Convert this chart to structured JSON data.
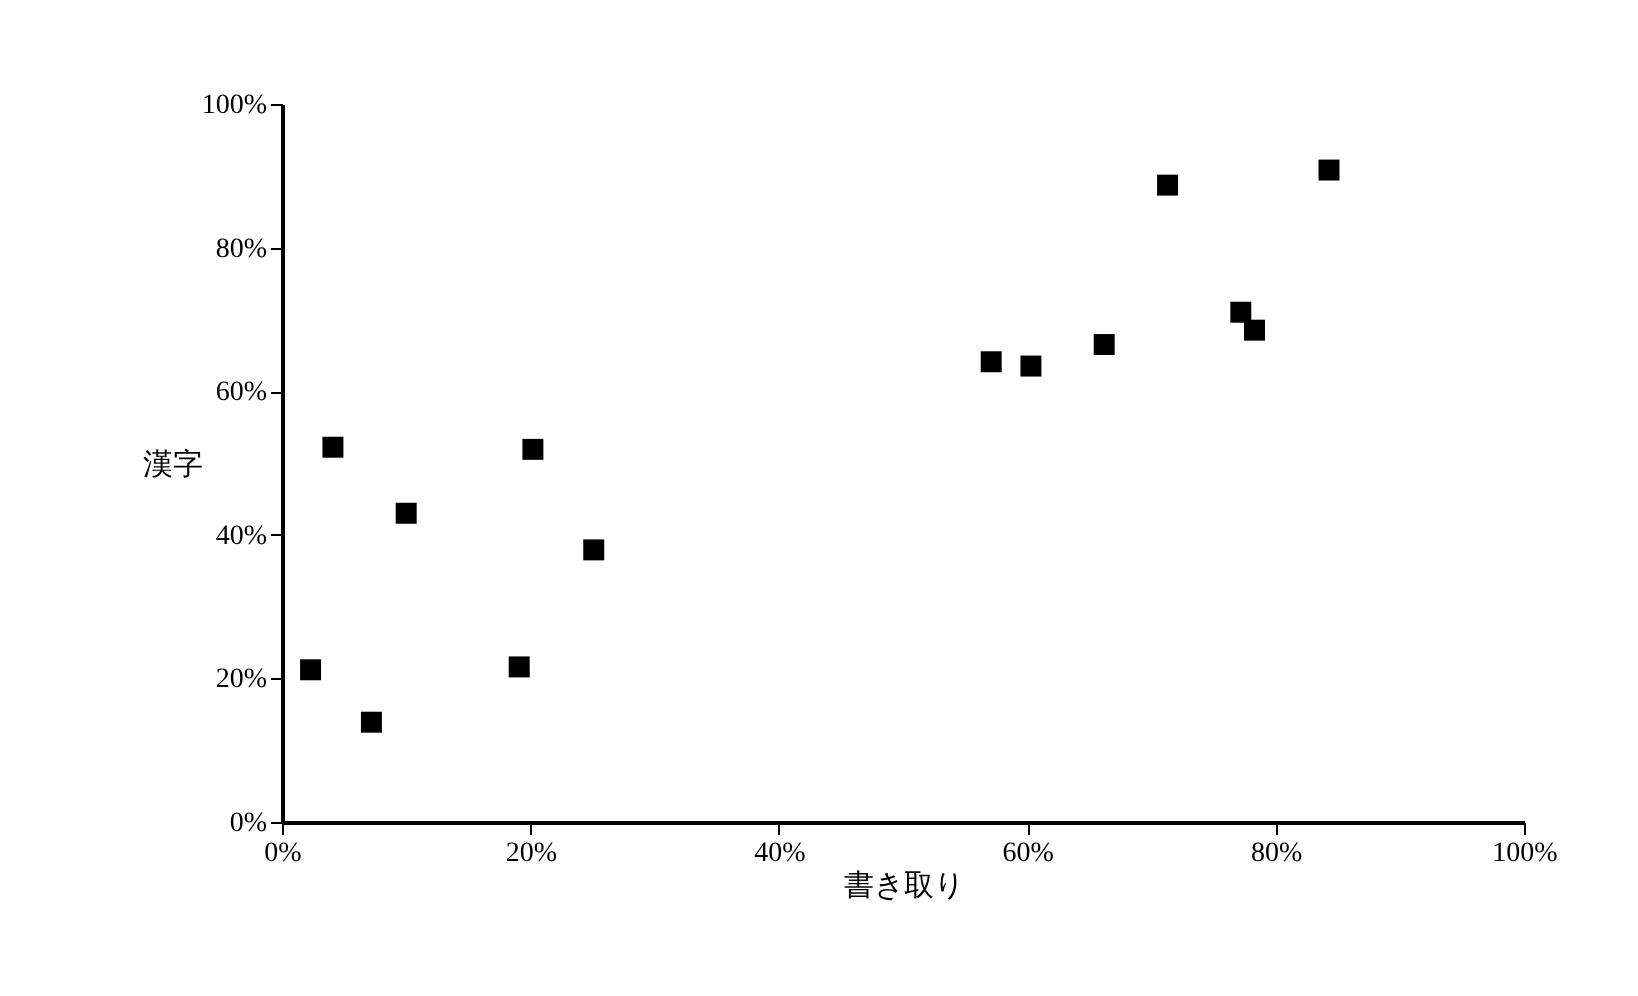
{
  "chart_data": {
    "type": "scatter",
    "xlabel": "書き取り",
    "ylabel": "漢字",
    "x": [
      2.3,
      4.1,
      10.0,
      7.2,
      19.1,
      20.2,
      25.1,
      57.1,
      60.3,
      66.2,
      71.3,
      77.2,
      78.3,
      84.3
    ],
    "series": [
      {
        "color": "#000000",
        "values": [
          21.2,
          52.2,
          43.0,
          13.9,
          21.6,
          51.9,
          37.9,
          64.1,
          63.5,
          66.5,
          88.7,
          71.0,
          68.5,
          90.8
        ]
      }
    ],
    "xlim": [
      0,
      100
    ],
    "ylim": [
      0,
      100
    ],
    "xticks": [
      {
        "value": 0,
        "label": "0%"
      },
      {
        "value": 20,
        "label": "20%"
      },
      {
        "value": 40,
        "label": "40%"
      },
      {
        "value": 60,
        "label": "60%"
      },
      {
        "value": 80,
        "label": "80%"
      },
      {
        "value": 100,
        "label": "100%"
      }
    ],
    "yticks": [
      {
        "value": 0,
        "label": "0%"
      },
      {
        "value": 20,
        "label": "20%"
      },
      {
        "value": 40,
        "label": "40%"
      },
      {
        "value": 60,
        "label": "60%"
      },
      {
        "value": 80,
        "label": "80%"
      },
      {
        "value": 100,
        "label": "100%"
      }
    ],
    "marker": "square"
  }
}
